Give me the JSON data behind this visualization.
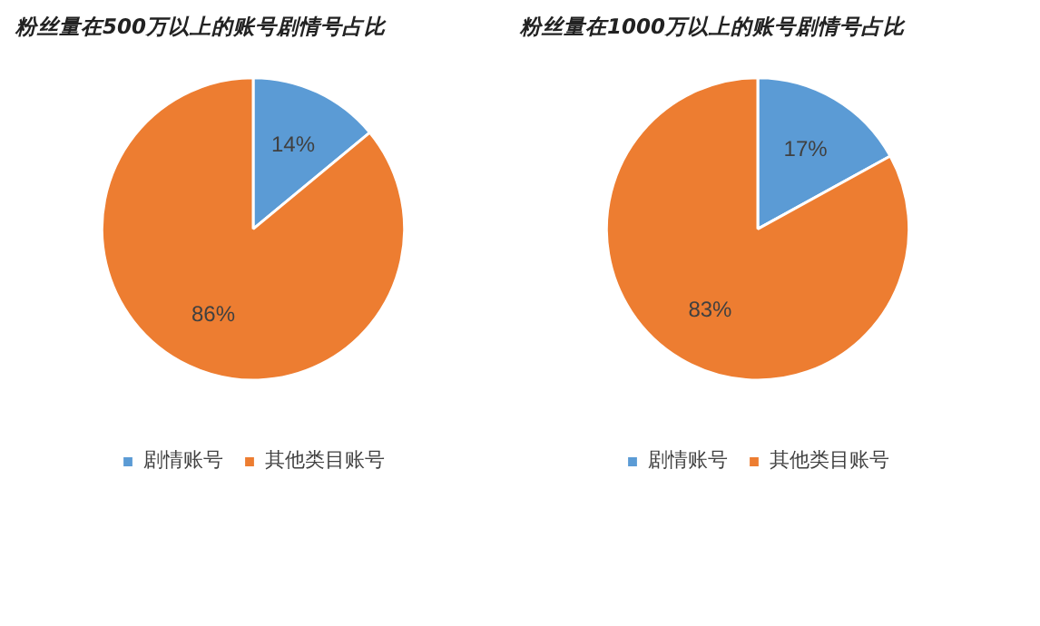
{
  "chart_data": [
    {
      "type": "pie",
      "title": "粉丝量在500万以上的账号剧情号占比",
      "categories": [
        "剧情账号",
        "其他类目账号"
      ],
      "values": [
        14,
        86
      ],
      "colors": [
        "#5b9bd5",
        "#ed7d31"
      ],
      "value_labels": [
        "14%",
        "86%"
      ],
      "legend": "bottom"
    },
    {
      "type": "pie",
      "title": "粉丝量在1000万以上的账号剧情号占比",
      "categories": [
        "剧情账号",
        "其他类目账号"
      ],
      "values": [
        17,
        83
      ],
      "colors": [
        "#5b9bd5",
        "#ed7d31"
      ],
      "value_labels": [
        "17%",
        "83%"
      ],
      "legend": "bottom"
    }
  ]
}
